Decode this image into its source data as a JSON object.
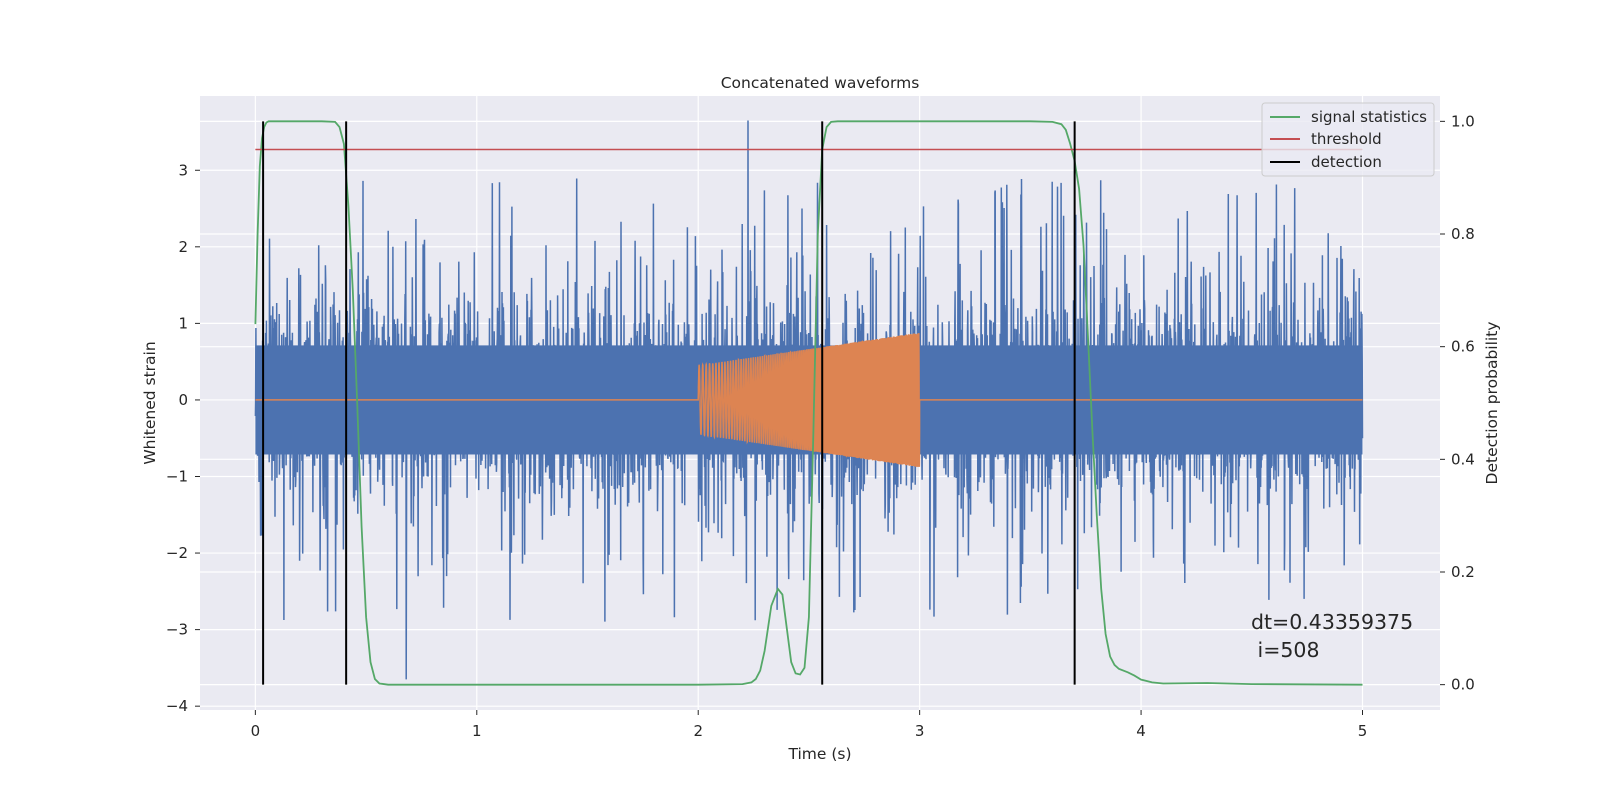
{
  "chart_data": {
    "type": "line",
    "title": "Concatenated waveforms",
    "xlabel": "Time (s)",
    "ylabel": "Whitened strain",
    "y2label": "Detection probability",
    "xlim": [
      -0.25,
      5.35
    ],
    "ylim": [
      -4.05,
      3.97
    ],
    "y2lim": [
      -0.045,
      1.045
    ],
    "xticks": [
      0,
      1,
      2,
      3,
      4,
      5
    ],
    "yticks": [
      -4,
      -3,
      -2,
      -1,
      0,
      1,
      2,
      3
    ],
    "y2ticks": [
      0.0,
      0.2,
      0.4,
      0.6,
      0.8,
      1.0
    ],
    "grid": true,
    "legend_position": "top-right",
    "series": [
      {
        "name": "",
        "role": "whitened strain noise",
        "color": "#4c72b0",
        "axis": "left",
        "x_range": [
          0,
          5
        ],
        "band_sigma": 0.75,
        "peak_max": 3.65,
        "peak_min": -3.65
      },
      {
        "name": "",
        "role": "injected chirp",
        "color": "#dd8452",
        "axis": "left",
        "x_range": [
          2,
          3
        ],
        "amplitude_start": 0.45,
        "amplitude_end": 0.88
      },
      {
        "name": "signal statistics",
        "color": "#55a868",
        "axis": "right",
        "x": [
          0,
          0.01,
          0.02,
          0.03,
          0.04,
          0.05,
          0.06,
          0.08,
          0.1,
          0.2,
          0.3,
          0.36,
          0.38,
          0.4,
          0.42,
          0.44,
          0.46,
          0.48,
          0.5,
          0.52,
          0.54,
          0.56,
          0.6,
          0.8,
          1.0,
          1.5,
          2.0,
          2.2,
          2.24,
          2.26,
          2.28,
          2.3,
          2.33,
          2.36,
          2.38,
          2.4,
          2.42,
          2.44,
          2.46,
          2.48,
          2.5,
          2.52,
          2.54,
          2.56,
          2.58,
          2.6,
          2.63,
          2.7,
          3.0,
          3.5,
          3.6,
          3.64,
          3.66,
          3.68,
          3.7,
          3.72,
          3.74,
          3.76,
          3.78,
          3.8,
          3.82,
          3.84,
          3.86,
          3.88,
          3.9,
          3.94,
          3.97,
          4.0,
          4.05,
          4.1,
          4.3,
          4.5,
          5.0
        ],
        "y": [
          0.64,
          0.8,
          0.92,
          0.97,
          0.99,
          0.998,
          1.0,
          1.0,
          1.0,
          1.0,
          1.0,
          0.999,
          0.99,
          0.96,
          0.85,
          0.7,
          0.5,
          0.28,
          0.12,
          0.04,
          0.01,
          0.002,
          0.0,
          0.0,
          0.0,
          0.0,
          0.0,
          0.001,
          0.004,
          0.01,
          0.025,
          0.06,
          0.14,
          0.17,
          0.16,
          0.1,
          0.04,
          0.02,
          0.018,
          0.03,
          0.12,
          0.45,
          0.8,
          0.95,
          0.99,
          0.999,
          1.0,
          1.0,
          1.0,
          1.0,
          0.999,
          0.995,
          0.985,
          0.96,
          0.93,
          0.88,
          0.78,
          0.62,
          0.45,
          0.3,
          0.17,
          0.09,
          0.05,
          0.035,
          0.028,
          0.022,
          0.016,
          0.009,
          0.004,
          0.002,
          0.003,
          0.001,
          0.0
        ]
      },
      {
        "name": "threshold",
        "color": "#c44e52",
        "axis": "right",
        "x": [
          0,
          5
        ],
        "y": [
          0.95,
          0.95
        ]
      },
      {
        "name": "detection",
        "color": "#000000",
        "axis": "right",
        "type": "vlines",
        "x": [
          0.035,
          0.41,
          2.56,
          3.7
        ],
        "y_range": [
          0,
          1
        ]
      }
    ],
    "annotation": {
      "line1": "dt=0.43359375",
      "line2": " i=508",
      "x": 4.5,
      "y": -3.1
    }
  }
}
